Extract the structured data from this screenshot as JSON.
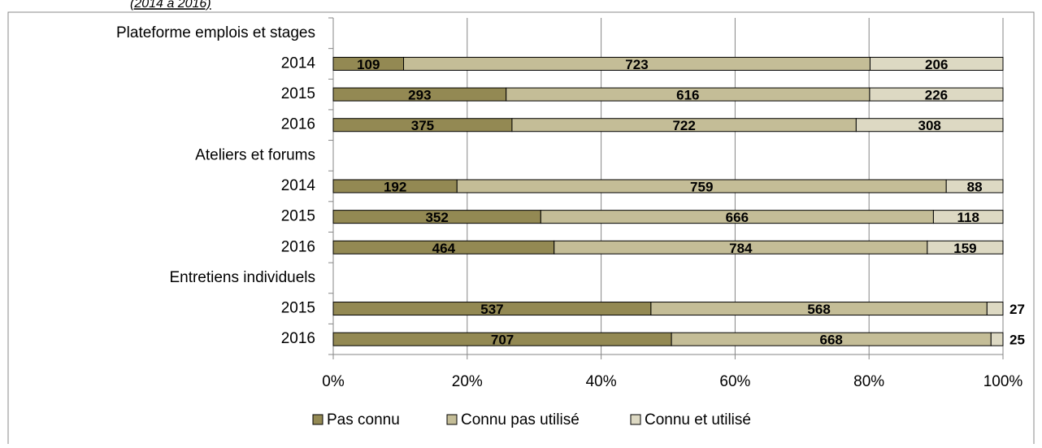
{
  "chart_data": {
    "type": "bar",
    "orientation": "horizontal",
    "stacking": "percent",
    "subtitle": "(2014 à 2016)",
    "categories": [
      "Plateforme emplois et stages",
      "2014",
      "2015",
      "2016",
      "Ateliers et forums",
      "2014",
      "2015",
      "2016",
      "Entretiens individuels",
      "2015",
      "2016"
    ],
    "series": [
      {
        "name": "Pas connu",
        "color": "#938953",
        "values": [
          null,
          109,
          293,
          375,
          null,
          192,
          352,
          464,
          null,
          537,
          707
        ]
      },
      {
        "name": "Connu pas utilisé",
        "color": "#c4bd97",
        "values": [
          null,
          723,
          616,
          722,
          null,
          759,
          666,
          784,
          null,
          568,
          668
        ]
      },
      {
        "name": "Connu et utilisé",
        "color": "#ddd9c3",
        "values": [
          null,
          206,
          226,
          308,
          null,
          88,
          118,
          159,
          null,
          27,
          25
        ]
      }
    ],
    "xlim": [
      0,
      100
    ],
    "xticks": [
      {
        "value": 0,
        "label": "0%"
      },
      {
        "value": 20,
        "label": "20%"
      },
      {
        "value": 40,
        "label": "40%"
      },
      {
        "value": 60,
        "label": "60%"
      },
      {
        "value": 80,
        "label": "80%"
      },
      {
        "value": 100,
        "label": "100%"
      }
    ],
    "grid": true,
    "legend": "bottom"
  }
}
